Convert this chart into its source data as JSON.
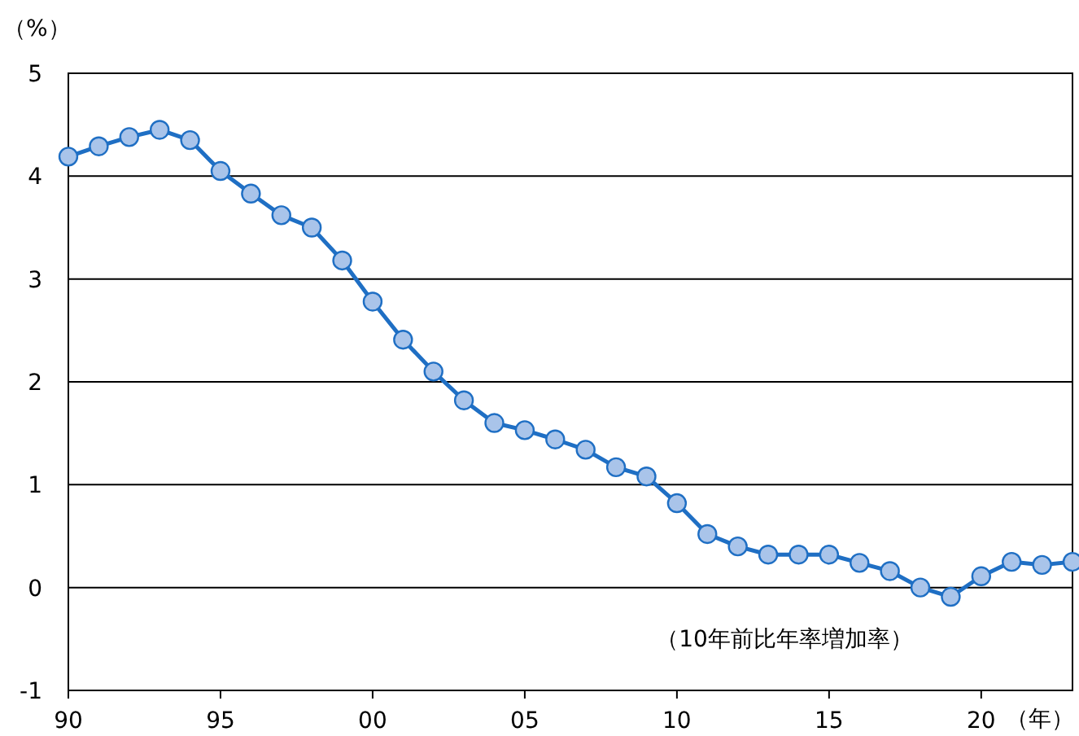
{
  "chart_data": {
    "type": "line",
    "xlabel": "（年）",
    "ylabel": "（%）",
    "annotations": [
      "（10年前比年率増加率）"
    ],
    "x": [
      1990,
      1991,
      1992,
      1993,
      1994,
      1995,
      1996,
      1997,
      1998,
      1999,
      2000,
      2001,
      2002,
      2003,
      2004,
      2005,
      2006,
      2007,
      2008,
      2009,
      2010,
      2011,
      2012,
      2013,
      2014,
      2015,
      2016,
      2017,
      2018,
      2019,
      2020,
      2021,
      2022,
      2023
    ],
    "series": [
      {
        "color": "#1f6fc4",
        "values": [
          4.19,
          4.29,
          4.38,
          4.45,
          4.35,
          4.05,
          3.83,
          3.62,
          3.5,
          3.18,
          2.78,
          2.41,
          2.1,
          1.82,
          1.6,
          1.53,
          1.44,
          1.34,
          1.17,
          1.08,
          0.82,
          0.52,
          0.4,
          0.32,
          0.32,
          0.32,
          0.24,
          0.16,
          0.0,
          -0.09,
          0.11,
          0.25,
          0.22,
          0.25
        ]
      }
    ],
    "xlim": [
      1990,
      2023
    ],
    "ylim": [
      -1,
      5
    ],
    "xticks": [
      {
        "value": 1990,
        "label": "90"
      },
      {
        "value": 1995,
        "label": "95"
      },
      {
        "value": 2000,
        "label": "00"
      },
      {
        "value": 2005,
        "label": "05"
      },
      {
        "value": 2010,
        "label": "10"
      },
      {
        "value": 2015,
        "label": "15"
      },
      {
        "value": 2020,
        "label": "20"
      }
    ],
    "yticks": [
      -1,
      0,
      1,
      2,
      3,
      4,
      5
    ],
    "grid": "y",
    "marker": "circle",
    "line_style": "solid"
  }
}
